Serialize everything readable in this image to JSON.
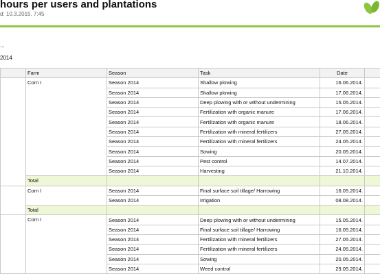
{
  "header": {
    "title": "hours per users and plantations",
    "subtitle": "d: 10.3.2015. 7:45",
    "line1": "...",
    "line2": "2014"
  },
  "table": {
    "headers": [
      "Farm",
      "Season",
      "Task",
      "Date"
    ],
    "groups": [
      {
        "farm": "Corn I",
        "total": "Total",
        "rows": [
          [
            "Season 2014",
            "Shallow plowing",
            "16.06.2014."
          ],
          [
            "Season 2014",
            "Shallow plowing",
            "17.06.2014."
          ],
          [
            "Season 2014",
            "Deep plowing with or without undermining",
            "15.05.2014."
          ],
          [
            "Season 2014",
            "Fertilization with organic manure",
            "17.06.2014."
          ],
          [
            "Season 2014",
            "Fertilization with organic manure",
            "18.06.2014."
          ],
          [
            "Season 2014",
            "Fertilization with mineral fertilizers",
            "27.05.2014."
          ],
          [
            "Season 2014",
            "Fertilization with mineral fertilizers",
            "24.05.2014."
          ],
          [
            "Season 2014",
            "Sowing",
            "20.05.2014."
          ],
          [
            "Season 2014",
            "Pest control",
            "14.07.2014."
          ],
          [
            "Season 2014",
            "Harvesting",
            "21.10.2014."
          ]
        ]
      },
      {
        "farm": "Corn I",
        "total": "Total",
        "rows": [
          [
            "Season 2014",
            "Final surface soil tillage/ Harrowing",
            "16.05.2014."
          ],
          [
            "Season 2014",
            "Irrigation",
            "08.08.2014."
          ]
        ]
      },
      {
        "farm": "Corn I",
        "rows": [
          [
            "Season 2014",
            "Deep plowing with or without undermining",
            "15.05.2014."
          ],
          [
            "Season 2014",
            "Final surface soil tillage/ Harrowing",
            "16.05.2014."
          ],
          [
            "Season 2014",
            "Fertilization with mineral fertilizers",
            "27.05.2014."
          ],
          [
            "Season 2014",
            "Fertilization with mineral fertilizers",
            "24.05.2014."
          ],
          [
            "Season 2014",
            "Sowing",
            "20.05.2014."
          ],
          [
            "Season 2014",
            "Weed control",
            "29.05.2014."
          ]
        ]
      }
    ]
  }
}
